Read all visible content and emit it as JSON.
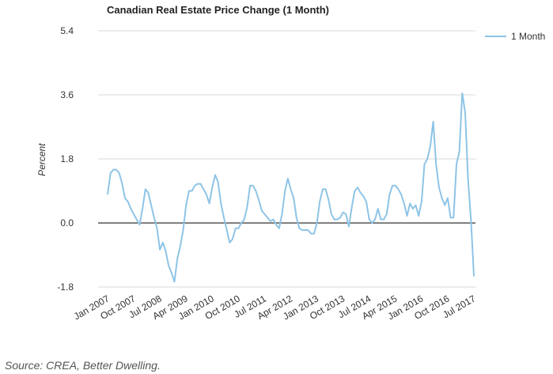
{
  "chart_data": {
    "type": "line",
    "title": "Canadian Real Estate Price Change (1 Month)",
    "ylabel": "Percent",
    "xlabel": "",
    "ylim": [
      -1.8,
      5.4
    ],
    "yticks": [
      5.4,
      3.6,
      1.8,
      0.0,
      -1.8
    ],
    "ytick_labels": [
      "5.4",
      "3.6",
      "1.8",
      "0.0",
      "-1.8"
    ],
    "xtick_labels": [
      "Jan 2007",
      "Oct 2007",
      "Jul 2008",
      "Apr 2009",
      "Jan 2010",
      "Oct 2010",
      "Jul 2011",
      "Apr 2012",
      "Jan 2013",
      "Oct 2013",
      "Jul 2014",
      "Apr 2015",
      "Jan 2016",
      "Oct 2016",
      "Jul 2017"
    ],
    "zero_line": true,
    "grid": "horizontal",
    "legend_position": "top-right",
    "series_color": "#8ec4e6",
    "series": [
      {
        "name": "1 Month",
        "start": "Jan 2007",
        "frequency": "monthly",
        "values": [
          0.8,
          1.4,
          1.5,
          1.5,
          1.4,
          1.1,
          0.7,
          0.6,
          0.4,
          0.25,
          0.1,
          -0.05,
          0.4,
          0.95,
          0.85,
          0.5,
          0.15,
          -0.15,
          -0.75,
          -0.55,
          -0.8,
          -1.2,
          -1.4,
          -1.65,
          -1.0,
          -0.65,
          -0.2,
          0.5,
          0.9,
          0.9,
          1.05,
          1.1,
          1.1,
          0.95,
          0.8,
          0.55,
          1.0,
          1.35,
          1.15,
          0.55,
          0.15,
          -0.2,
          -0.55,
          -0.45,
          -0.15,
          -0.15,
          0.0,
          0.1,
          0.45,
          1.05,
          1.05,
          0.9,
          0.65,
          0.35,
          0.25,
          0.15,
          0.05,
          0.1,
          -0.05,
          -0.15,
          0.25,
          0.9,
          1.25,
          0.95,
          0.7,
          0.15,
          -0.15,
          -0.2,
          -0.2,
          -0.2,
          -0.3,
          -0.3,
          0.0,
          0.6,
          0.95,
          0.95,
          0.65,
          0.25,
          0.1,
          0.1,
          0.15,
          0.3,
          0.25,
          -0.1,
          0.45,
          0.9,
          1.0,
          0.85,
          0.75,
          0.6,
          0.1,
          0.0,
          0.1,
          0.4,
          0.1,
          0.1,
          0.25,
          0.8,
          1.05,
          1.05,
          0.95,
          0.8,
          0.55,
          0.2,
          0.55,
          0.4,
          0.5,
          0.2,
          0.6,
          1.65,
          1.8,
          2.15,
          2.85,
          1.65,
          1.0,
          0.7,
          0.5,
          0.7,
          0.15,
          0.15,
          1.65,
          2.0,
          3.65,
          3.1,
          1.2,
          0.1,
          -1.5
        ]
      }
    ]
  },
  "source_note": "Source: CREA, Better Dwelling."
}
